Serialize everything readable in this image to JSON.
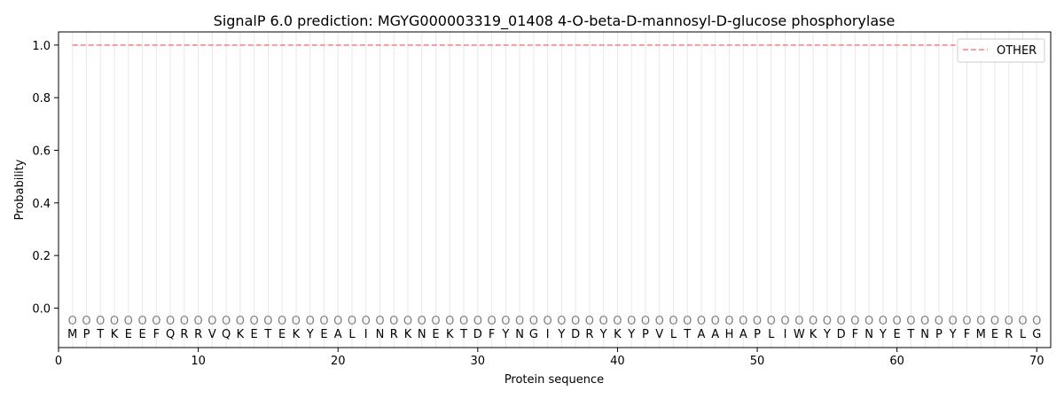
{
  "chart_data": {
    "type": "line",
    "title": "SignalP 6.0 prediction: MGYG000003319_01408 4-O-beta-D-mannosyl-D-glucose phosphorylase",
    "xlabel": "Protein sequence",
    "ylabel": "Probability",
    "xlim": [
      0,
      71
    ],
    "ylim": [
      -0.15,
      1.05
    ],
    "x_ticks": [
      0,
      10,
      20,
      30,
      40,
      50,
      60,
      70
    ],
    "y_ticks": [
      0.0,
      0.2,
      0.4,
      0.6,
      0.8,
      1.0
    ],
    "x_tick_labels": [
      "0",
      "10",
      "20",
      "30",
      "40",
      "50",
      "60",
      "70"
    ],
    "y_tick_labels": [
      "0.0",
      "0.2",
      "0.4",
      "0.6",
      "0.8",
      "1.0"
    ],
    "sequence": [
      "M",
      "P",
      "T",
      "K",
      "E",
      "E",
      "F",
      "Q",
      "R",
      "R",
      "V",
      "Q",
      "K",
      "E",
      "T",
      "E",
      "K",
      "Y",
      "E",
      "A",
      "L",
      "I",
      "N",
      "R",
      "K",
      "N",
      "E",
      "K",
      "T",
      "D",
      "F",
      "Y",
      "N",
      "G",
      "I",
      "Y",
      "D",
      "R",
      "Y",
      "K",
      "Y",
      "P",
      "V",
      "L",
      "T",
      "A",
      "A",
      "H",
      "A",
      "P",
      "L",
      "I",
      "W",
      "K",
      "Y",
      "D",
      "F",
      "N",
      "Y",
      "E",
      "T",
      "N",
      "P",
      "Y",
      "F",
      "M",
      "E",
      "R",
      "L",
      "G"
    ],
    "predicted_label": "O",
    "label_marker_y": -0.045,
    "series": [
      {
        "name": "OTHER",
        "color": "#f08080",
        "style": "dashed",
        "x_range": [
          1,
          70
        ],
        "value": 1.0
      }
    ],
    "grid": "vertical-per-residue",
    "legend_position": "top-right"
  }
}
